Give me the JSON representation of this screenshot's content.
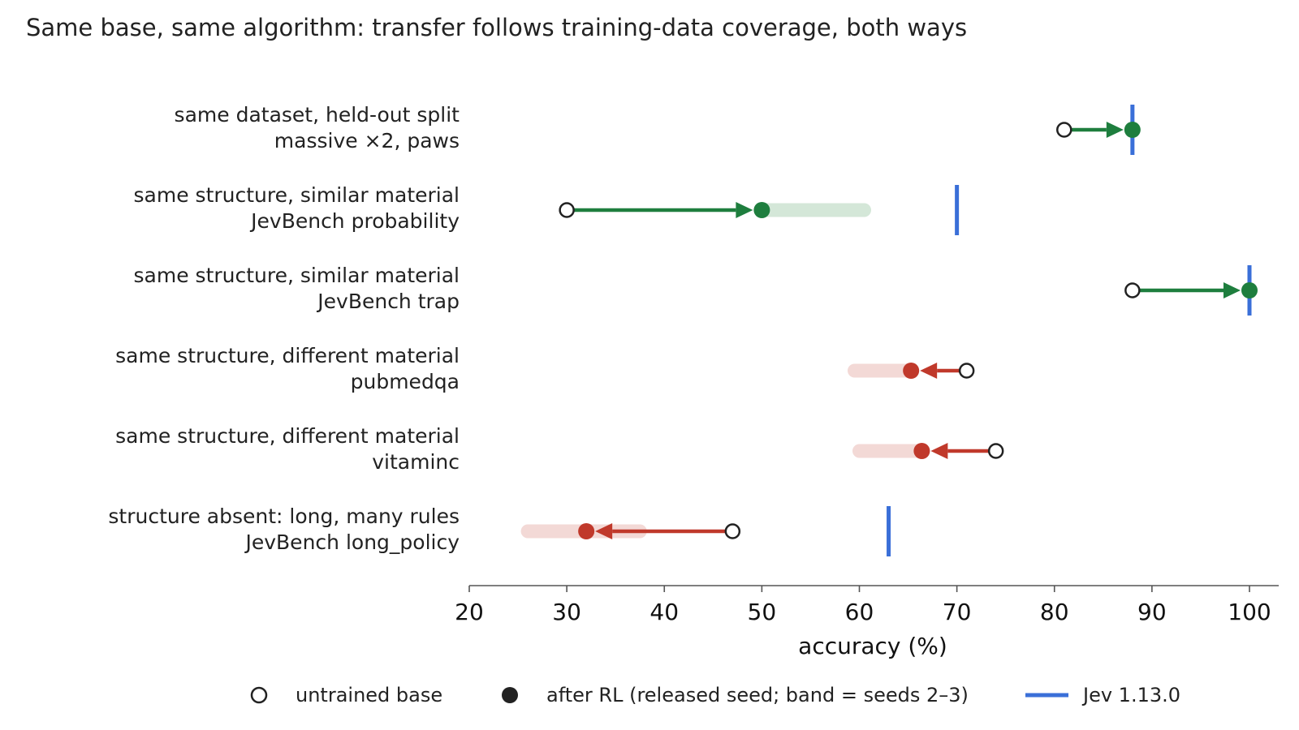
{
  "chart_data": {
    "type": "dumbbell",
    "title": "Same base, same algorithm: transfer follows training-data coverage, both ways",
    "xlabel": "accuracy (%)",
    "xlim": [
      20,
      103
    ],
    "xticks": [
      "20",
      "30",
      "40",
      "50",
      "60",
      "70",
      "80",
      "90",
      "100"
    ],
    "grid": false,
    "legend_placement": "bottom",
    "colors": {
      "gain": "#1e7e3e",
      "loss": "#c0392b",
      "reference": "#3a6fd8"
    },
    "rows": [
      {
        "label_top": "same dataset, held-out split",
        "label_bottom": "massive ×2, paws",
        "base": 81,
        "after": 88,
        "band": null,
        "reference": 88,
        "direction": "gain"
      },
      {
        "label_top": "same structure, similar material",
        "label_bottom": "JevBench probability",
        "base": 30,
        "after": 50,
        "band": [
          50,
          60.5
        ],
        "reference": 70,
        "direction": "gain"
      },
      {
        "label_top": "same structure, similar material",
        "label_bottom": "JevBench trap",
        "base": 88,
        "after": 100,
        "band": null,
        "reference": 100,
        "direction": "gain"
      },
      {
        "label_top": "same structure, different material",
        "label_bottom": "pubmedqa",
        "base": 71,
        "after": 65.3,
        "band": [
          59.5,
          65.3
        ],
        "reference": null,
        "direction": "loss"
      },
      {
        "label_top": "same structure, different material",
        "label_bottom": "vitaminc",
        "base": 74,
        "after": 66.4,
        "band": [
          60,
          66.4
        ],
        "reference": null,
        "direction": "loss"
      },
      {
        "label_top": "structure absent: long, many rules",
        "label_bottom": "JevBench long_policy",
        "base": 47,
        "after": 32,
        "band": [
          26,
          37.5
        ],
        "reference": 63,
        "direction": "loss"
      }
    ],
    "legend": [
      {
        "marker": "open-circle",
        "label": "untrained base"
      },
      {
        "marker": "filled-circle",
        "label": "after RL (released seed; band = seeds 2–3)"
      },
      {
        "marker": "line",
        "label": "Jev 1.13.0"
      }
    ]
  }
}
